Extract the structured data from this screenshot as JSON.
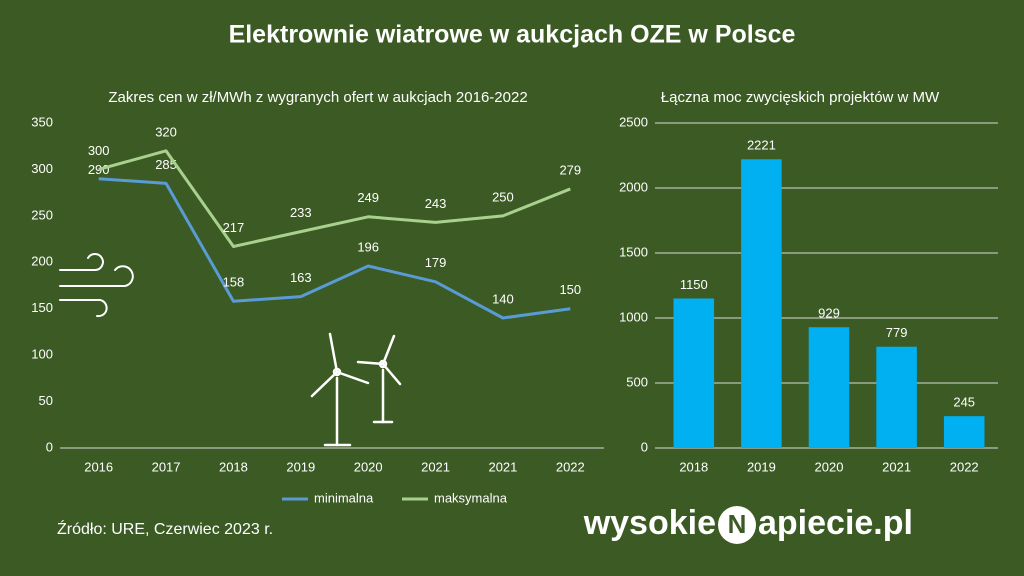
{
  "title": "Elektrownie wiatrowe w aukcjach OZE w Polsce",
  "source": "Źródło:  URE, Czerwiec 2023 r.",
  "logo": [
    "wysokie",
    "N",
    "apiecie.pl"
  ],
  "chart_data": [
    {
      "type": "line",
      "title": "Zakres cen w zł/MWh z wygranych ofert w aukcjach 2016-2022",
      "categories": [
        "2016",
        "2017",
        "2018",
        "2019",
        "2020",
        "2021",
        "2021",
        "2022"
      ],
      "series": [
        {
          "name": "minimalna",
          "color": "#5b9bd5",
          "values": [
            290,
            285,
            158,
            163,
            196,
            179,
            140,
            150
          ]
        },
        {
          "name": "maksymalna",
          "color": "#a9d18e",
          "values": [
            300,
            320,
            217,
            233,
            249,
            243,
            250,
            279
          ]
        }
      ],
      "ylim": [
        0,
        350
      ],
      "yticks": [
        0,
        50,
        100,
        150,
        200,
        250,
        300,
        350
      ],
      "grid": false,
      "legend": "bottom"
    },
    {
      "type": "bar",
      "title": "Łączna moc zwycięskich projektów w MW",
      "categories": [
        "2018",
        "2019",
        "2020",
        "2021",
        "2022"
      ],
      "values": [
        1150,
        2221,
        929,
        779,
        245
      ],
      "color": "#00b0f0",
      "ylim": [
        0,
        2500
      ],
      "yticks": [
        0,
        500,
        1000,
        1500,
        2000,
        2500
      ],
      "grid": true
    }
  ]
}
